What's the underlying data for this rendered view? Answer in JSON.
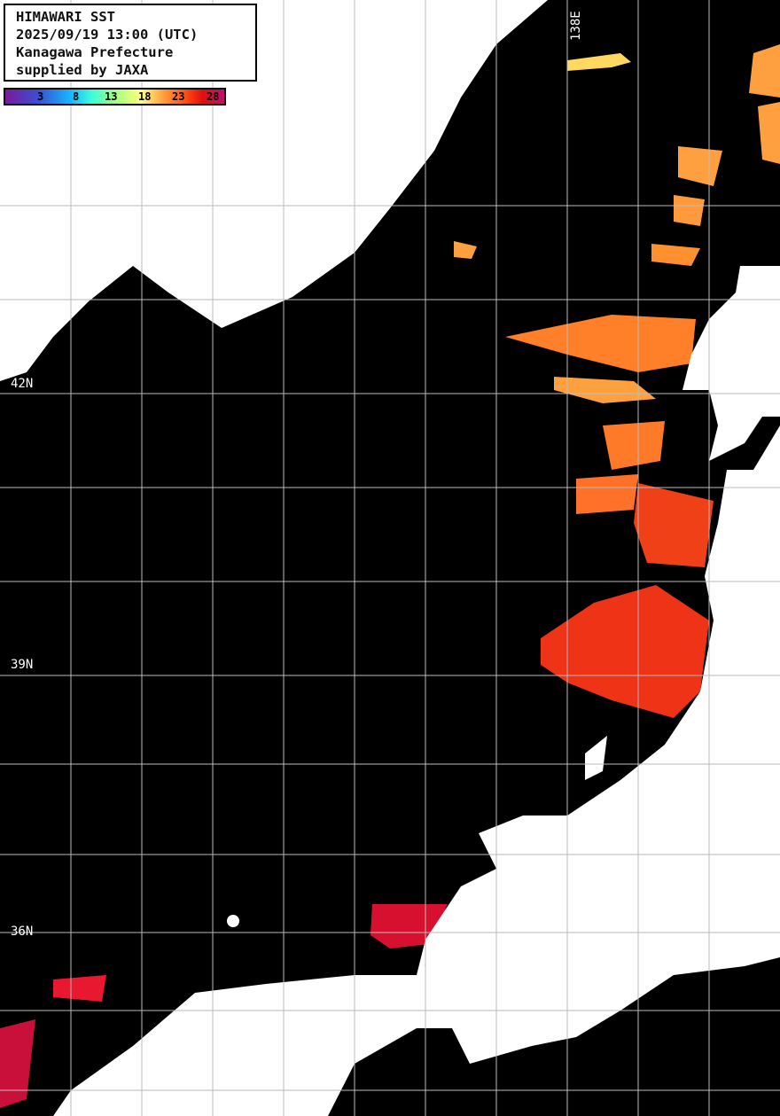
{
  "header": {
    "line1": "HIMAWARI SST",
    "line2": "2025/09/19 13:00 (UTC)",
    "line3": "Kanagawa Prefecture",
    "line4": "supplied by JAXA"
  },
  "colorbar": {
    "ticks": [
      "3",
      "8",
      "13",
      "18",
      "23",
      "28"
    ],
    "colors": [
      "#7a1a9a",
      "#3a4fd0",
      "#18b8ff",
      "#40ffd8",
      "#a0ff80",
      "#ffff80",
      "#ffa040",
      "#ff5010",
      "#e01010",
      "#c01070"
    ]
  },
  "grid": {
    "lat_labels": [
      "42N",
      "39N",
      "36N"
    ],
    "lon_labels": [
      "138E"
    ]
  },
  "colors": {
    "ocean_nodata": "#000000",
    "land": "#ffffff",
    "grid": "#bbbbbb"
  }
}
